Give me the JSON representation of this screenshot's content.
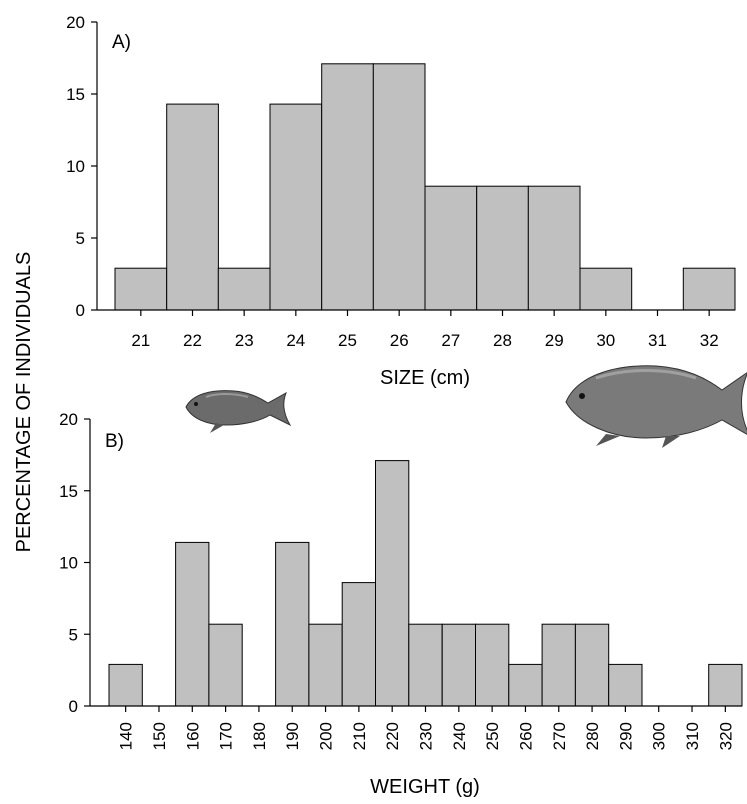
{
  "shared": {
    "ylabel": "PERCENTAGE OF INDIVIDUALS"
  },
  "colors": {
    "bar_fill": "#c0c0c0",
    "bar_stroke": "#000000"
  },
  "icons": [
    "small-fish-icon",
    "large-fish-icon"
  ],
  "chart_data": [
    {
      "type": "bar",
      "panel_label": "A)",
      "xlabel": "SIZE (cm)",
      "ylabel": "PERCENTAGE OF INDIVIDUALS",
      "categories": [
        "21",
        "22",
        "23",
        "24",
        "25",
        "26",
        "27",
        "28",
        "29",
        "30",
        "31",
        "32"
      ],
      "values": [
        2.9,
        14.3,
        2.9,
        14.3,
        17.1,
        17.1,
        8.6,
        8.6,
        8.6,
        2.9,
        0,
        2.9
      ],
      "ylim": [
        0,
        20
      ],
      "yticks": [
        "0",
        "5",
        "10",
        "15",
        "20"
      ],
      "grid": false
    },
    {
      "type": "bar",
      "panel_label": "B)",
      "xlabel": "WEIGHT (g)",
      "ylabel": "PERCENTAGE OF INDIVIDUALS",
      "categories": [
        "140",
        "150",
        "160",
        "170",
        "180",
        "190",
        "200",
        "210",
        "220",
        "230",
        "240",
        "250",
        "260",
        "270",
        "280",
        "290",
        "300",
        "310",
        "320"
      ],
      "values": [
        2.9,
        0,
        11.4,
        5.7,
        0,
        11.4,
        5.7,
        8.6,
        17.1,
        5.7,
        5.7,
        5.7,
        2.9,
        5.7,
        5.7,
        2.9,
        0,
        0,
        2.9
      ],
      "ylim": [
        0,
        20
      ],
      "yticks": [
        "0",
        "5",
        "10",
        "15",
        "20"
      ],
      "grid": false
    }
  ]
}
